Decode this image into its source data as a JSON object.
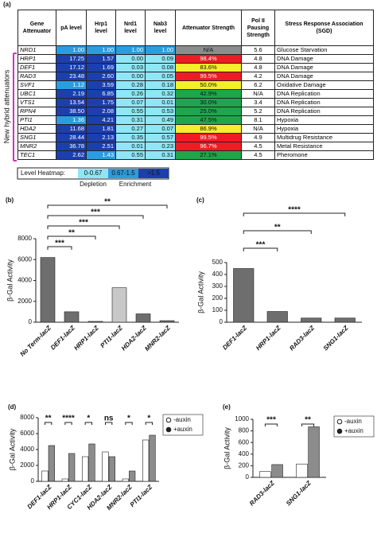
{
  "panel_a": "(a)",
  "side_label": "New hybrid attenuators",
  "table": {
    "header": [
      "Gene Attenuator",
      "pA level",
      "Hrp1 level",
      "Nrd1 level",
      "Nab3 level",
      "Attenuator Strength",
      "Pol II Pausing Strength",
      "Stress Response Association (SGD)"
    ],
    "rows": [
      [
        "NRD1",
        "1.00",
        "1.00",
        "1.00",
        "1.00",
        "N/A",
        "5.6",
        "Glucose Starvation"
      ],
      [
        "HRP1",
        "17.25",
        "1.57",
        "0.00",
        "0.09",
        "98.4%",
        "4.8",
        "DNA Damage"
      ],
      [
        "DEF1",
        "17.12",
        "1.69",
        "0.03",
        "0.08",
        "83.6%",
        "4.8",
        "DNA Damage"
      ],
      [
        "RAD3",
        "23.48",
        "2.60",
        "0.00",
        "0.05",
        "99.5%",
        "4.2",
        "DNA Damage"
      ],
      [
        "SVF1",
        "1.12",
        "3.59",
        "0.28",
        "0.18",
        "50.0%",
        "6.2",
        "Oxidative Damage"
      ],
      [
        "UBC1",
        "2.19",
        "6.85",
        "0.26",
        "0.32",
        "42.9%",
        "N/A",
        "DNA Replication"
      ],
      [
        "VTS1",
        "13.54",
        "1.75",
        "0.07",
        "0.01",
        "30.0%",
        "3.4",
        "DNA Replication"
      ],
      [
        "RPN4",
        "38.50",
        "2.08",
        "0.55",
        "0.53",
        "25.0%",
        "5.2",
        "DNA Replication"
      ],
      [
        "PTI1",
        "1.36",
        "4.21",
        "0.31",
        "0.49",
        "47.5%",
        "8.1",
        "Hypoxia"
      ],
      [
        "HDA2",
        "11.68",
        "1.81",
        "0.27",
        "0.07",
        "86.9%",
        "N/A",
        "Hypoxia"
      ],
      [
        "SNG1",
        "28.44",
        "2.13",
        "0.35",
        "0.57",
        "99.5%",
        "4.9",
        "Multidrug Resistance"
      ],
      [
        "MNR2",
        "36.78",
        "2.51",
        "0.01",
        "0.23",
        "96.7%",
        "4.5",
        "Metal Resistance"
      ],
      [
        "TEC1",
        "2.62",
        "1.43",
        "0.55",
        "0.31",
        "27.1%",
        "4.5",
        "Pheromone"
      ]
    ],
    "strength_colors": [
      "#8c8c8c",
      "#ee1c24",
      "#f5ee2a",
      "#ee1c24",
      "#f5ee2a",
      "#1fa64a",
      "#1fa64a",
      "#1fa64a",
      "#1fa64a",
      "#f5ee2a",
      "#ee1c24",
      "#ee1c24",
      "#1fa64a"
    ]
  },
  "heatmap": {
    "label": "Level Heatmap:",
    "thresholds": [
      0.67,
      1.5
    ],
    "bins": [
      {
        "label": "0-0.67",
        "color": "#8fe6f6"
      },
      {
        "label": "0.67-1.5",
        "color": "#2a9de0"
      },
      {
        "label": ">1.5",
        "color": "#1c3fae"
      }
    ],
    "low": "Depletion",
    "high": "Enrichment"
  },
  "chart_data": [
    {
      "type": "bar",
      "panel": "(b)",
      "y_label": "β-Gal Activity",
      "categories": [
        "No Term-lacZ",
        "DEF1-lacZ",
        "HRP1-lacZ",
        "PTI1-lacZ",
        "HDA2-lacZ",
        "MNR2-lacZ"
      ],
      "values": [
        6200,
        1000,
        80,
        3300,
        800,
        150
      ],
      "colors": [
        "#6e6e6e",
        "#6e6e6e",
        "#6e6e6e",
        "#c8c8c8",
        "#6e6e6e",
        "#6e6e6e"
      ],
      "ylim": [
        0,
        8000
      ],
      "yticks": [
        0,
        2000,
        4000,
        6000,
        8000
      ],
      "brackets": [
        {
          "label": "**",
          "pair": [
            0,
            5
          ]
        },
        {
          "label": "***",
          "pair": [
            0,
            4
          ]
        },
        {
          "label": "***",
          "pair": [
            0,
            3
          ]
        },
        {
          "label": "**",
          "pair": [
            0,
            2
          ]
        },
        {
          "label": "***",
          "pair": [
            0,
            1
          ]
        }
      ]
    },
    {
      "type": "bar",
      "panel": "(c)",
      "y_label": "β-Gal Activity",
      "categories": [
        "DEF1-lacZ",
        "HRP1-lacZ",
        "RAD3-lacZ",
        "SNG1-lacZ"
      ],
      "values": [
        450,
        90,
        35,
        35
      ],
      "colors": [
        "#6e6e6e",
        "#6e6e6e",
        "#6e6e6e",
        "#6e6e6e"
      ],
      "ylim": [
        0,
        500
      ],
      "yticks": [
        0,
        100,
        200,
        300,
        400,
        500
      ],
      "brackets": [
        {
          "label": "****",
          "pair": [
            0,
            3
          ]
        },
        {
          "label": "**",
          "pair": [
            0,
            2
          ]
        },
        {
          "label": "***",
          "pair": [
            0,
            1
          ]
        }
      ]
    },
    {
      "type": "grouped_bar",
      "panel": "(d)",
      "y_label": "β-Gal Activity",
      "categories": [
        "DEF1-lacZ",
        "HRP1-lacZ",
        "CYC1-lacZ",
        "HDA2-lacZ",
        "MNR2-lacZ",
        "PTI1-lacZ"
      ],
      "series": [
        {
          "name": "-auxin",
          "color": "#ffffff",
          "values": [
            1300,
            300,
            3100,
            3700,
            300,
            5200
          ]
        },
        {
          "name": "+auxin",
          "color": "#8c8c8c",
          "values": [
            4500,
            3500,
            4700,
            3100,
            1300,
            5800
          ]
        }
      ],
      "ylim": [
        0,
        8000
      ],
      "yticks": [
        0,
        2000,
        4000,
        6000,
        8000
      ],
      "significance": [
        "**",
        "****",
        "*",
        "ns",
        "*",
        "*"
      ]
    },
    {
      "type": "grouped_bar",
      "panel": "(e)",
      "y_label": "β-Gal Activity",
      "categories": [
        "RAD3-lacZ",
        "SNG1-lacZ"
      ],
      "series": [
        {
          "name": "-auxin",
          "color": "#ffffff",
          "values": [
            100,
            230
          ]
        },
        {
          "name": "+auxin",
          "color": "#8c8c8c",
          "values": [
            220,
            870
          ]
        }
      ],
      "ylim": [
        0,
        1000
      ],
      "yticks": [
        0,
        200,
        400,
        600,
        800,
        1000
      ],
      "significance": [
        "***",
        "**"
      ]
    }
  ]
}
